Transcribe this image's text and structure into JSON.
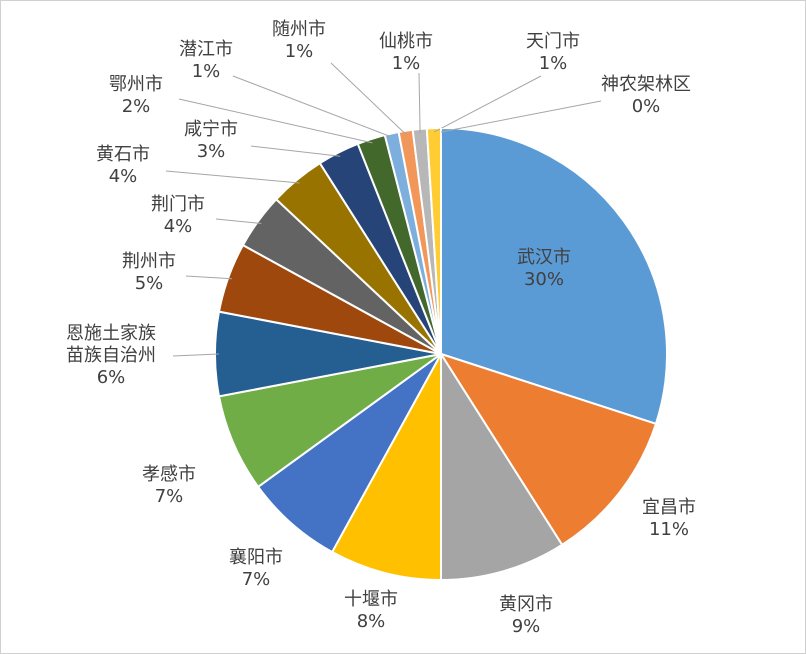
{
  "chart_data": {
    "type": "pie",
    "categories": [
      "武汉市",
      "宜昌市",
      "黄冈市",
      "十堰市",
      "襄阳市",
      "孝感市",
      "恩施土家族\n苗族自治州",
      "荆州市",
      "荆门市",
      "黄石市",
      "咸宁市",
      "鄂州市",
      "潜江市",
      "随州市",
      "仙桃市",
      "天门市",
      "神农架林区"
    ],
    "values": [
      30,
      11,
      9,
      8,
      7,
      7,
      6,
      5,
      4,
      4,
      3,
      2,
      1,
      1,
      1,
      1,
      0
    ],
    "value_labels": [
      "30%",
      "11%",
      "9%",
      "8%",
      "7%",
      "7%",
      "6%",
      "5%",
      "4%",
      "4%",
      "3%",
      "2%",
      "1%",
      "1%",
      "1%",
      "1%",
      "0%"
    ],
    "colors": [
      "#5b9bd5",
      "#ed7d31",
      "#a5a5a5",
      "#ffc000",
      "#4472c4",
      "#70ad47",
      "#255e91",
      "#9e480e",
      "#636363",
      "#997300",
      "#264478",
      "#43682b",
      "#7cafdd",
      "#f1975a",
      "#b7b7b7",
      "#ffcd33",
      "#698ed0"
    ]
  }
}
